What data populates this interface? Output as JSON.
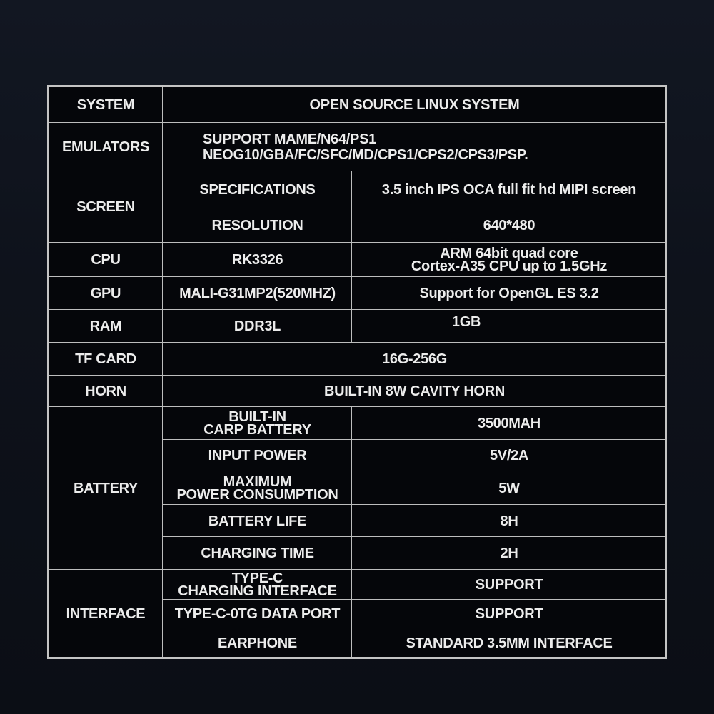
{
  "rows": {
    "system": {
      "label": "SYSTEM",
      "value": "OPEN SOURCE LINUX SYSTEM"
    },
    "emulators": {
      "label": "EMULATORS",
      "value": "SUPPORT MAME/N64/PS1\nNEOG10/GBA/FC/SFC/MD/CPS1/CPS2/CPS3/PSP."
    },
    "screen": {
      "label": "SCREEN",
      "specifications": {
        "label": "SPECIFICATIONS",
        "value": "3.5 inch IPS OCA full fit hd MIPI screen"
      },
      "resolution": {
        "label": "RESOLUTION",
        "value": "640*480"
      }
    },
    "cpu": {
      "label": "CPU",
      "model": "RK3326",
      "value": "ARM 64bit quad core\nCortex-A35 CPU up to 1.5GHz"
    },
    "gpu": {
      "label": "GPU",
      "model": "MALI-G31MP2(520MHZ)",
      "value": "Support for OpenGL ES 3.2"
    },
    "ram": {
      "label": "RAM",
      "model": "DDR3L",
      "value": "1GB"
    },
    "tf_card": {
      "label": "TF CARD",
      "value": "16G-256G"
    },
    "horn": {
      "label": "HORN",
      "value": "BUILT-IN 8W CAVITY HORN"
    },
    "battery": {
      "label": "BATTERY",
      "items": [
        {
          "label": "BUILT-IN\nCARP BATTERY",
          "value": "3500MAH"
        },
        {
          "label": "INPUT POWER",
          "value": "5V/2A"
        },
        {
          "label": "MAXIMUM\nPOWER CONSUMPTION",
          "value": "5W"
        },
        {
          "label": "BATTERY LIFE",
          "value": "8H"
        },
        {
          "label": "CHARGING TIME",
          "value": "2H"
        }
      ]
    },
    "interface": {
      "label": "INTERFACE",
      "items": [
        {
          "label": "TYPE-C\nCHARGING INTERFACE",
          "value": "SUPPORT"
        },
        {
          "label": "TYPE-C-0TG DATA PORT",
          "value": "SUPPORT"
        },
        {
          "label": "EARPHONE",
          "value": "STANDARD 3.5MM INTERFACE"
        }
      ]
    }
  }
}
